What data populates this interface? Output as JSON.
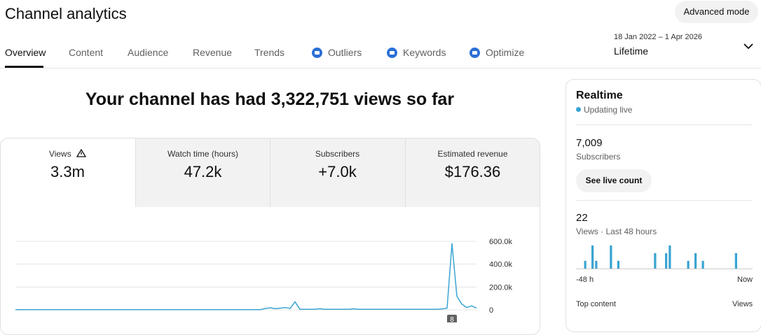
{
  "header": {
    "title": "Channel analytics",
    "advanced_mode": "Advanced mode"
  },
  "tabs": [
    "Overview",
    "Content",
    "Audience",
    "Revenue",
    "Trends",
    "Outliers",
    "Keywords",
    "Optimize"
  ],
  "date_range": {
    "range": "18 Jan 2022 – 1 Apr 2026",
    "period": "Lifetime"
  },
  "headline": "Your channel has had 3,322,751 views so far",
  "metrics": [
    {
      "label": "Views",
      "value": "3.3m"
    },
    {
      "label": "Watch time (hours)",
      "value": "47.2k"
    },
    {
      "label": "Subscribers",
      "value": "+7.0k"
    },
    {
      "label": "Estimated revenue",
      "value": "$176.36"
    }
  ],
  "chart_data": {
    "type": "line",
    "color": "#3aa4d2",
    "grid": true,
    "ylim": [
      0,
      600000
    ],
    "yticks": [
      0,
      {
        "value": 200000,
        "label": "200.0k"
      },
      {
        "value": 400000,
        "label": "400.0k"
      },
      {
        "value": 600000,
        "label": "600.0k"
      }
    ],
    "video_marker": "8",
    "values": [
      2000,
      2000,
      2000,
      2000,
      2000,
      2000,
      2000,
      2000,
      2000,
      2000,
      2000,
      2000,
      2000,
      2000,
      2000,
      2000,
      2000,
      2000,
      2000,
      2000,
      2000,
      2000,
      2000,
      2000,
      2000,
      2000,
      2000,
      2000,
      2000,
      2000,
      2000,
      2000,
      2000,
      2000,
      2000,
      2000,
      2000,
      2000,
      2000,
      2000,
      2000,
      2000,
      2000,
      2000,
      2000,
      2000,
      2000,
      2000,
      2000,
      2000,
      2000,
      12000,
      18000,
      10000,
      15000,
      20000,
      12000,
      70000,
      5000,
      4000,
      4000,
      4000,
      10000,
      4000,
      4000,
      4000,
      4000,
      4000,
      4000,
      9000,
      4000,
      4000,
      4000,
      4000,
      4000,
      4000,
      4000,
      4000,
      4000,
      4000,
      4000,
      4000,
      4000,
      4000,
      4000,
      4000,
      4000,
      8000,
      15000,
      580000,
      120000,
      50000,
      20000,
      35000,
      15000
    ]
  },
  "realtime": {
    "title": "Realtime",
    "status": "Updating live",
    "subscribers": "7,009",
    "subscribers_label": "Subscribers",
    "button": "See live count",
    "views": "22",
    "views_label": "Views · Last 48 hours",
    "start_label": "-48 h",
    "end_label": "Now",
    "top_content": "Top content",
    "top_content_metric": "Views",
    "chart": {
      "type": "bar",
      "color": "#3aa4d2",
      "values": [
        0,
        0,
        1,
        0,
        3,
        1,
        0,
        0,
        0,
        3,
        0,
        1,
        0,
        0,
        0,
        0,
        0,
        0,
        0,
        0,
        0,
        2,
        0,
        0,
        2,
        3,
        0,
        0,
        0,
        0,
        1,
        0,
        2,
        0,
        1,
        0,
        0,
        0,
        0,
        0,
        0,
        0,
        0,
        2,
        0,
        0,
        0,
        0
      ]
    }
  }
}
